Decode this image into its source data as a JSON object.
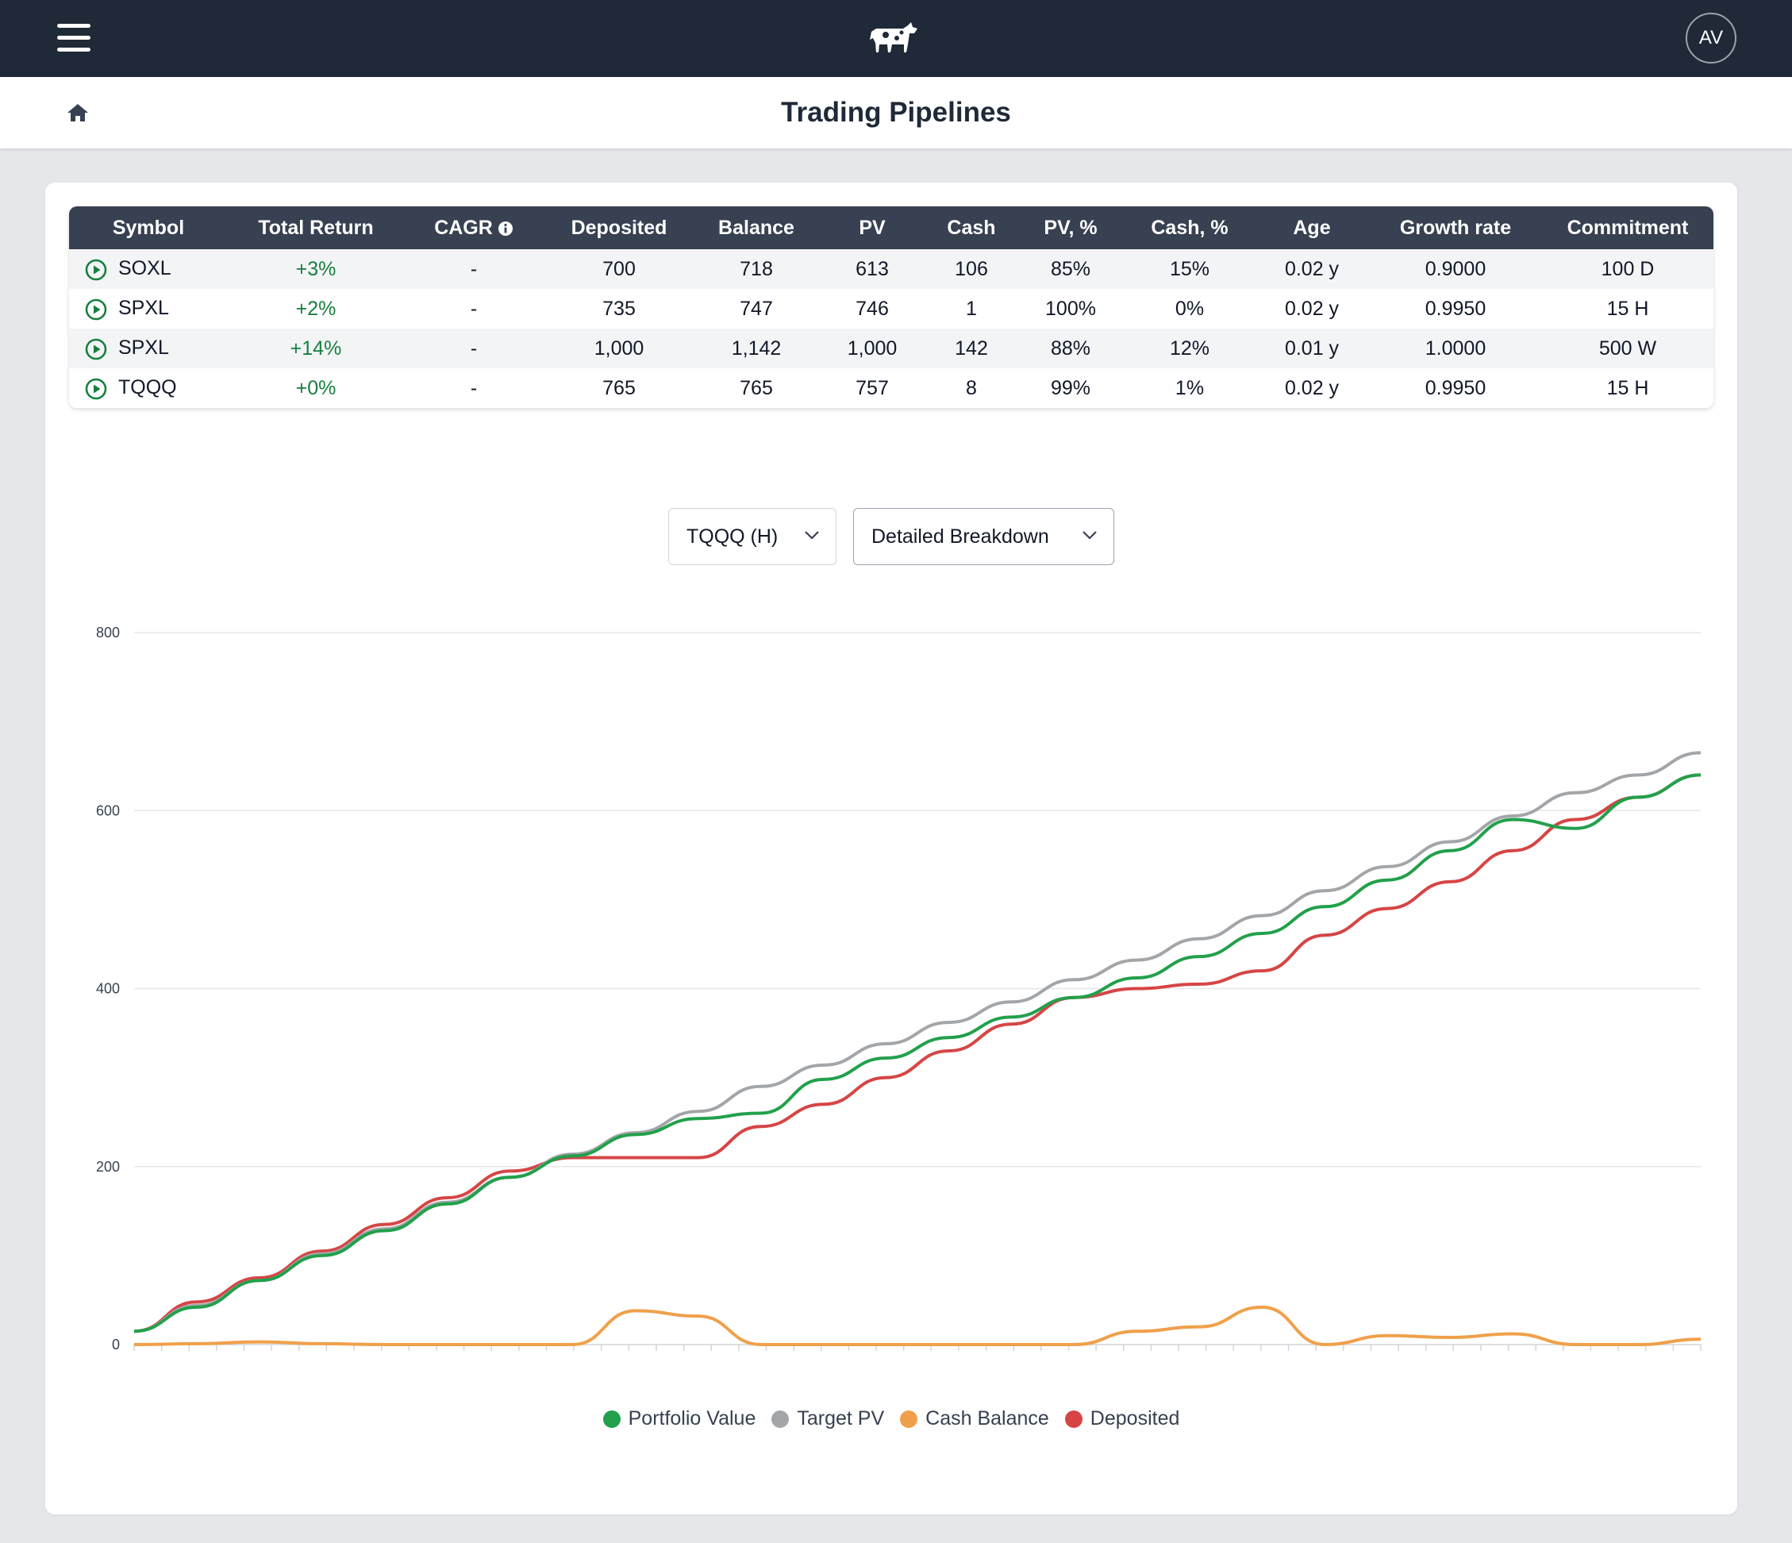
{
  "app": {
    "title": "Trading Pipelines",
    "user_initials": "AV"
  },
  "table": {
    "headers": [
      "Symbol",
      "Total Return",
      "CAGR",
      "Deposited",
      "Balance",
      "PV",
      "Cash",
      "PV, %",
      "Cash, %",
      "Age",
      "Growth rate",
      "Commitment"
    ],
    "rows": [
      {
        "symbol": "SOXL",
        "total_return": "+3%",
        "cagr": "-",
        "deposited": "700",
        "balance": "718",
        "pv": "613",
        "cash": "106",
        "pv_pct": "85%",
        "cash_pct": "15%",
        "age": "0.02 y",
        "growth_rate": "0.9000",
        "commitment": "100 D"
      },
      {
        "symbol": "SPXL",
        "total_return": "+2%",
        "cagr": "-",
        "deposited": "735",
        "balance": "747",
        "pv": "746",
        "cash": "1",
        "pv_pct": "100%",
        "cash_pct": "0%",
        "age": "0.02 y",
        "growth_rate": "0.9950",
        "commitment": "15 H"
      },
      {
        "symbol": "SPXL",
        "total_return": "+14%",
        "cagr": "-",
        "deposited": "1,000",
        "balance": "1,142",
        "pv": "1,000",
        "cash": "142",
        "pv_pct": "88%",
        "cash_pct": "12%",
        "age": "0.01 y",
        "growth_rate": "1.0000",
        "commitment": "500 W"
      },
      {
        "symbol": "TQQQ",
        "total_return": "+0%",
        "cagr": "-",
        "deposited": "765",
        "balance": "765",
        "pv": "757",
        "cash": "8",
        "pv_pct": "99%",
        "cash_pct": "1%",
        "age": "0.02 y",
        "growth_rate": "0.9950",
        "commitment": "15 H"
      }
    ]
  },
  "controls": {
    "pipeline_select": "TQQQ (H)",
    "view_select": "Detailed Breakdown"
  },
  "icons": {
    "menu": "hamburger-icon",
    "logo": "cow-logo",
    "home": "home-icon",
    "row_action": "play-circle-icon",
    "cagr_info": "info-icon",
    "select": "chevron-down-icon"
  },
  "colors": {
    "topbar": "#1f2937",
    "return_positive": "#15803d",
    "portfolio_value": "#22a04b",
    "target_pv": "#a3a6a9",
    "cash_balance": "#f0a04a",
    "deposited": "#d64545"
  },
  "chart_data": {
    "type": "line",
    "ylim": [
      0,
      800
    ],
    "yticks": [
      0,
      200,
      400,
      600,
      800
    ],
    "grid": true,
    "legend_position": "bottom",
    "x": [
      0,
      4,
      8,
      12,
      16,
      20,
      24,
      28,
      32,
      36,
      40,
      44,
      48,
      52,
      56,
      60,
      64,
      68,
      72,
      76,
      80,
      84,
      88,
      92,
      96,
      100
    ],
    "series": [
      {
        "name": "Portfolio Value",
        "color": "#22a04b",
        "values": [
          15,
          42,
          72,
          100,
          128,
          158,
          188,
          212,
          236,
          254,
          260,
          298,
          322,
          345,
          368,
          390,
          412,
          436,
          462,
          492,
          522,
          555,
          590,
          580,
          615,
          640
        ]
      },
      {
        "name": "Target PV",
        "color": "#a3a6a9",
        "values": [
          15,
          44,
          72,
          102,
          130,
          160,
          188,
          214,
          238,
          262,
          290,
          314,
          338,
          362,
          385,
          410,
          432,
          456,
          482,
          510,
          537,
          565,
          594,
          620,
          640,
          665
        ]
      },
      {
        "name": "Cash Balance",
        "color": "#f0a04a",
        "values": [
          0,
          1,
          3,
          1,
          0,
          0,
          0,
          0,
          38,
          32,
          0,
          0,
          0,
          0,
          0,
          0,
          15,
          20,
          42,
          0,
          10,
          8,
          12,
          0,
          0,
          6
        ]
      },
      {
        "name": "Deposited",
        "color": "#d64545",
        "values": [
          15,
          48,
          75,
          105,
          135,
          165,
          195,
          210,
          210,
          210,
          245,
          270,
          300,
          330,
          360,
          390,
          400,
          405,
          420,
          460,
          490,
          520,
          555,
          590,
          615,
          640
        ]
      }
    ]
  }
}
